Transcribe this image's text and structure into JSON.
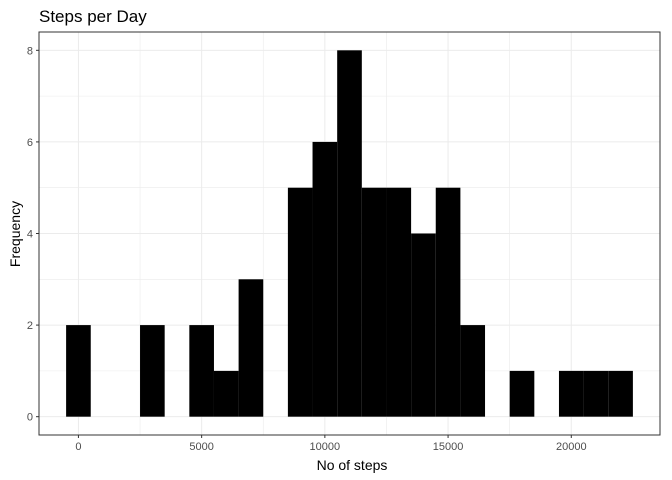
{
  "chart_data": {
    "type": "bar",
    "title": "Steps per Day",
    "xlabel": "No of steps",
    "ylabel": "Frequency",
    "bin_width": 1000,
    "bins": [
      {
        "start": -500,
        "end": 500,
        "count": 2
      },
      {
        "start": 500,
        "end": 1500,
        "count": 0
      },
      {
        "start": 1500,
        "end": 2500,
        "count": 0
      },
      {
        "start": 2500,
        "end": 3500,
        "count": 2
      },
      {
        "start": 3500,
        "end": 4500,
        "count": 0
      },
      {
        "start": 4500,
        "end": 5500,
        "count": 2
      },
      {
        "start": 5500,
        "end": 6500,
        "count": 1
      },
      {
        "start": 6500,
        "end": 7500,
        "count": 3
      },
      {
        "start": 7500,
        "end": 8500,
        "count": 0
      },
      {
        "start": 8500,
        "end": 9500,
        "count": 5
      },
      {
        "start": 9500,
        "end": 10500,
        "count": 6
      },
      {
        "start": 10500,
        "end": 11500,
        "count": 8
      },
      {
        "start": 11500,
        "end": 12500,
        "count": 5
      },
      {
        "start": 12500,
        "end": 13500,
        "count": 5
      },
      {
        "start": 13500,
        "end": 14500,
        "count": 4
      },
      {
        "start": 14500,
        "end": 15500,
        "count": 5
      },
      {
        "start": 15500,
        "end": 16500,
        "count": 2
      },
      {
        "start": 16500,
        "end": 17500,
        "count": 0
      },
      {
        "start": 17500,
        "end": 18500,
        "count": 1
      },
      {
        "start": 18500,
        "end": 19500,
        "count": 0
      },
      {
        "start": 19500,
        "end": 20500,
        "count": 1
      },
      {
        "start": 20500,
        "end": 21500,
        "count": 1
      },
      {
        "start": 21500,
        "end": 22500,
        "count": 1
      }
    ],
    "xlim": [
      -1600,
      23600
    ],
    "ylim": [
      -0.4,
      8.4
    ],
    "x_ticks": [
      0,
      5000,
      10000,
      15000,
      20000
    ],
    "x_tick_labels": [
      "0",
      "5000",
      "10000",
      "15000",
      "20000"
    ],
    "y_ticks": [
      0,
      2,
      4,
      6,
      8
    ],
    "y_tick_labels": [
      "0",
      "2",
      "4",
      "6",
      "8"
    ],
    "grid": true,
    "bar_color": "#000000",
    "grid_color": "#ebebeb",
    "panel_border_color": "#333333"
  }
}
